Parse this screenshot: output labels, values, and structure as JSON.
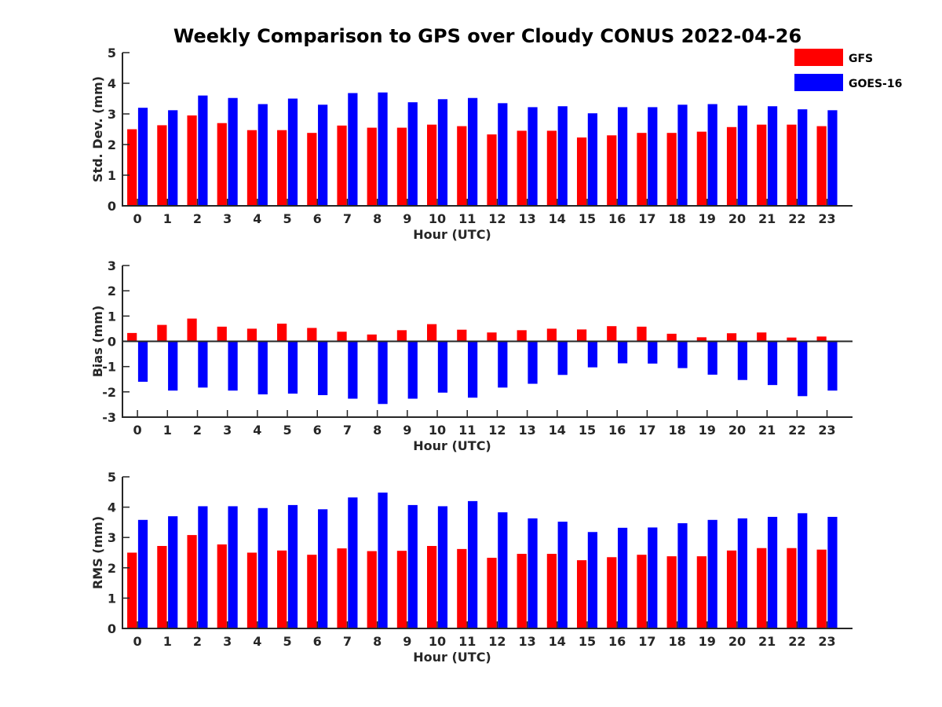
{
  "figure": {
    "title": "Weekly Comparison to GPS over Cloudy CONUS 2022-04-26"
  },
  "legend": {
    "placement": "top-right",
    "entries": [
      {
        "label": "GFS",
        "color": "#ff0000"
      },
      {
        "label": "GOES-16",
        "color": "#0000ff"
      }
    ]
  },
  "chart_data": [
    {
      "type": "bar",
      "title": "Weekly Comparison to GPS over Cloudy CONUS 2022-04-26",
      "xlabel": "Hour (UTC)",
      "ylabel": "Std. Dev. (mm)",
      "ylim": [
        0,
        5
      ],
      "yticks": [
        "0",
        "1",
        "2",
        "3",
        "4",
        "5"
      ],
      "categories": [
        "0",
        "1",
        "2",
        "3",
        "4",
        "5",
        "6",
        "7",
        "8",
        "9",
        "10",
        "11",
        "12",
        "13",
        "14",
        "15",
        "16",
        "17",
        "18",
        "19",
        "20",
        "21",
        "22",
        "23"
      ],
      "series": [
        {
          "name": "GFS",
          "color": "#ff0000",
          "values": [
            2.5,
            2.63,
            2.95,
            2.7,
            2.47,
            2.47,
            2.38,
            2.62,
            2.55,
            2.55,
            2.65,
            2.6,
            2.33,
            2.45,
            2.45,
            2.23,
            2.3,
            2.38,
            2.38,
            2.42,
            2.57,
            2.65,
            2.65,
            2.6
          ]
        },
        {
          "name": "GOES-16",
          "color": "#0000ff",
          "values": [
            3.2,
            3.12,
            3.6,
            3.52,
            3.32,
            3.5,
            3.3,
            3.68,
            3.7,
            3.38,
            3.48,
            3.52,
            3.35,
            3.22,
            3.25,
            3.02,
            3.22,
            3.22,
            3.3,
            3.32,
            3.27,
            3.25,
            3.15,
            3.12
          ]
        }
      ]
    },
    {
      "type": "bar",
      "xlabel": "Hour (UTC)",
      "ylabel": "Bias (mm)",
      "ylim": [
        -3,
        3
      ],
      "yticks": [
        "-3",
        "-2",
        "-1",
        "0",
        "1",
        "2",
        "3"
      ],
      "categories": [
        "0",
        "1",
        "2",
        "3",
        "4",
        "5",
        "6",
        "7",
        "8",
        "9",
        "10",
        "11",
        "12",
        "13",
        "14",
        "15",
        "16",
        "17",
        "18",
        "19",
        "20",
        "21",
        "22",
        "23"
      ],
      "series": [
        {
          "name": "GFS",
          "color": "#ff0000",
          "values": [
            0.33,
            0.65,
            0.9,
            0.58,
            0.5,
            0.7,
            0.53,
            0.38,
            0.27,
            0.44,
            0.68,
            0.46,
            0.35,
            0.44,
            0.5,
            0.47,
            0.6,
            0.58,
            0.3,
            0.16,
            0.32,
            0.35,
            0.15,
            0.19
          ]
        },
        {
          "name": "GOES-16",
          "color": "#0000ff",
          "values": [
            -1.6,
            -1.95,
            -1.83,
            -1.95,
            -2.1,
            -2.07,
            -2.13,
            -2.27,
            -2.48,
            -2.27,
            -2.03,
            -2.23,
            -1.83,
            -1.68,
            -1.33,
            -1.03,
            -0.87,
            -0.88,
            -1.06,
            -1.32,
            -1.53,
            -1.73,
            -2.17,
            -1.95
          ]
        }
      ]
    },
    {
      "type": "bar",
      "xlabel": "Hour (UTC)",
      "ylabel": "RMS (mm)",
      "ylim": [
        0,
        5
      ],
      "yticks": [
        "0",
        "1",
        "2",
        "3",
        "4",
        "5"
      ],
      "categories": [
        "0",
        "1",
        "2",
        "3",
        "4",
        "5",
        "6",
        "7",
        "8",
        "9",
        "10",
        "11",
        "12",
        "13",
        "14",
        "15",
        "16",
        "17",
        "18",
        "19",
        "20",
        "21",
        "22",
        "23"
      ],
      "series": [
        {
          "name": "GFS",
          "color": "#ff0000",
          "values": [
            2.5,
            2.72,
            3.08,
            2.77,
            2.5,
            2.57,
            2.43,
            2.64,
            2.55,
            2.56,
            2.72,
            2.62,
            2.33,
            2.46,
            2.46,
            2.25,
            2.35,
            2.43,
            2.38,
            2.38,
            2.57,
            2.65,
            2.65,
            2.6
          ]
        },
        {
          "name": "GOES-16",
          "color": "#0000ff",
          "values": [
            3.58,
            3.7,
            4.03,
            4.03,
            3.97,
            4.07,
            3.93,
            4.32,
            4.48,
            4.07,
            4.03,
            4.2,
            3.83,
            3.63,
            3.52,
            3.18,
            3.32,
            3.33,
            3.47,
            3.58,
            3.63,
            3.68,
            3.8,
            3.68
          ]
        }
      ]
    }
  ]
}
